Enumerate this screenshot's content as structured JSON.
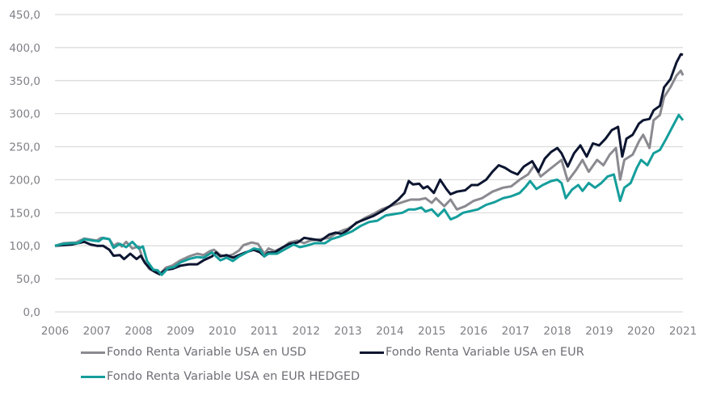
{
  "chart_data": {
    "type": "line",
    "title": "",
    "xlabel": "",
    "ylabel": "",
    "ylim": [
      0,
      450
    ],
    "xlim": [
      2006,
      2021
    ],
    "y_ticks": [
      "0,0",
      "50,0",
      "100,0",
      "150,0",
      "200,0",
      "250,0",
      "300,0",
      "350,0",
      "400,0",
      "450,0"
    ],
    "y_tick_values": [
      0,
      50,
      100,
      150,
      200,
      250,
      300,
      350,
      400,
      450
    ],
    "x_ticks": [
      "2006",
      "2007",
      "2008",
      "2009",
      "2010",
      "2011",
      "2012",
      "2013",
      "2014",
      "2015",
      "2016",
      "2017",
      "2018",
      "2019",
      "2020",
      "2021"
    ],
    "x_tick_values": [
      2006,
      2007,
      2008,
      2009,
      2010,
      2011,
      2012,
      2013,
      2014,
      2015,
      2016,
      2017,
      2018,
      2019,
      2020,
      2021
    ],
    "grid": true,
    "legend_position": "bottom",
    "series": [
      {
        "name": "Fondo Renta Variable USA en USD",
        "color": "#8a8a90",
        "points": [
          [
            2006.0,
            100
          ],
          [
            2006.2,
            104
          ],
          [
            2006.5,
            105
          ],
          [
            2006.7,
            111
          ],
          [
            2007.0,
            108
          ],
          [
            2007.1,
            112
          ],
          [
            2007.3,
            110
          ],
          [
            2007.4,
            100
          ],
          [
            2007.5,
            104
          ],
          [
            2007.6,
            99
          ],
          [
            2007.7,
            106
          ],
          [
            2007.85,
            96
          ],
          [
            2008.0,
            99
          ],
          [
            2008.1,
            80
          ],
          [
            2008.25,
            65
          ],
          [
            2008.4,
            62
          ],
          [
            2008.5,
            57
          ],
          [
            2008.65,
            67
          ],
          [
            2008.8,
            70
          ],
          [
            2009.0,
            78
          ],
          [
            2009.2,
            84
          ],
          [
            2009.4,
            88
          ],
          [
            2009.55,
            86
          ],
          [
            2009.7,
            92
          ],
          [
            2009.8,
            94
          ],
          [
            2009.95,
            86
          ],
          [
            2010.1,
            84
          ],
          [
            2010.25,
            87
          ],
          [
            2010.4,
            93
          ],
          [
            2010.5,
            101
          ],
          [
            2010.7,
            105
          ],
          [
            2010.85,
            103
          ],
          [
            2011.0,
            88
          ],
          [
            2011.1,
            96
          ],
          [
            2011.25,
            92
          ],
          [
            2011.45,
            98
          ],
          [
            2011.6,
            105
          ],
          [
            2011.8,
            108
          ],
          [
            2011.95,
            104
          ],
          [
            2012.1,
            108
          ],
          [
            2012.35,
            110
          ],
          [
            2012.55,
            112
          ],
          [
            2012.75,
            120
          ],
          [
            2012.9,
            124
          ],
          [
            2013.0,
            126
          ],
          [
            2013.2,
            134
          ],
          [
            2013.4,
            142
          ],
          [
            2013.6,
            148
          ],
          [
            2013.8,
            155
          ],
          [
            2014.0,
            160
          ],
          [
            2014.2,
            164
          ],
          [
            2014.4,
            168
          ],
          [
            2014.5,
            170
          ],
          [
            2014.7,
            170
          ],
          [
            2014.85,
            172
          ],
          [
            2015.0,
            165
          ],
          [
            2015.1,
            172
          ],
          [
            2015.3,
            160
          ],
          [
            2015.45,
            170
          ],
          [
            2015.6,
            155
          ],
          [
            2015.8,
            160
          ],
          [
            2016.0,
            168
          ],
          [
            2016.2,
            172
          ],
          [
            2016.45,
            182
          ],
          [
            2016.7,
            188
          ],
          [
            2016.9,
            190
          ],
          [
            2017.1,
            200
          ],
          [
            2017.3,
            208
          ],
          [
            2017.45,
            222
          ],
          [
            2017.6,
            205
          ],
          [
            2017.8,
            215
          ],
          [
            2018.0,
            225
          ],
          [
            2018.1,
            230
          ],
          [
            2018.25,
            198
          ],
          [
            2018.45,
            215
          ],
          [
            2018.6,
            230
          ],
          [
            2018.75,
            212
          ],
          [
            2018.95,
            230
          ],
          [
            2019.1,
            222
          ],
          [
            2019.25,
            238
          ],
          [
            2019.4,
            248
          ],
          [
            2019.5,
            200
          ],
          [
            2019.6,
            230
          ],
          [
            2019.8,
            238
          ],
          [
            2019.95,
            258
          ],
          [
            2020.05,
            268
          ],
          [
            2020.2,
            248
          ],
          [
            2020.3,
            290
          ],
          [
            2020.45,
            298
          ],
          [
            2020.55,
            325
          ],
          [
            2020.7,
            340
          ],
          [
            2020.85,
            358
          ],
          [
            2020.95,
            365
          ],
          [
            2021.0,
            358
          ]
        ]
      },
      {
        "name": "Fondo Renta Variable USA en EUR",
        "color": "#0c1530",
        "points": [
          [
            2006.0,
            100
          ],
          [
            2006.2,
            101
          ],
          [
            2006.4,
            102
          ],
          [
            2006.55,
            104
          ],
          [
            2006.7,
            106
          ],
          [
            2006.85,
            102
          ],
          [
            2007.0,
            100
          ],
          [
            2007.15,
            100
          ],
          [
            2007.3,
            94
          ],
          [
            2007.4,
            85
          ],
          [
            2007.55,
            86
          ],
          [
            2007.65,
            80
          ],
          [
            2007.8,
            88
          ],
          [
            2007.95,
            80
          ],
          [
            2008.05,
            85
          ],
          [
            2008.15,
            74
          ],
          [
            2008.3,
            64
          ],
          [
            2008.4,
            60
          ],
          [
            2008.5,
            57
          ],
          [
            2008.65,
            64
          ],
          [
            2008.8,
            65
          ],
          [
            2009.0,
            70
          ],
          [
            2009.2,
            72
          ],
          [
            2009.4,
            72
          ],
          [
            2009.55,
            78
          ],
          [
            2009.75,
            84
          ],
          [
            2009.85,
            90
          ],
          [
            2009.95,
            84
          ],
          [
            2010.1,
            86
          ],
          [
            2010.25,
            82
          ],
          [
            2010.4,
            86
          ],
          [
            2010.55,
            90
          ],
          [
            2010.75,
            94
          ],
          [
            2010.9,
            90
          ],
          [
            2011.0,
            84
          ],
          [
            2011.1,
            90
          ],
          [
            2011.25,
            90
          ],
          [
            2011.45,
            98
          ],
          [
            2011.6,
            103
          ],
          [
            2011.8,
            105
          ],
          [
            2011.95,
            112
          ],
          [
            2012.15,
            110
          ],
          [
            2012.35,
            108
          ],
          [
            2012.55,
            117
          ],
          [
            2012.7,
            120
          ],
          [
            2012.85,
            118
          ],
          [
            2013.0,
            124
          ],
          [
            2013.2,
            135
          ],
          [
            2013.4,
            140
          ],
          [
            2013.6,
            145
          ],
          [
            2013.8,
            152
          ],
          [
            2014.0,
            160
          ],
          [
            2014.2,
            170
          ],
          [
            2014.35,
            180
          ],
          [
            2014.45,
            198
          ],
          [
            2014.55,
            193
          ],
          [
            2014.7,
            194
          ],
          [
            2014.8,
            187
          ],
          [
            2014.9,
            190
          ],
          [
            2015.05,
            180
          ],
          [
            2015.2,
            200
          ],
          [
            2015.35,
            186
          ],
          [
            2015.45,
            178
          ],
          [
            2015.6,
            182
          ],
          [
            2015.8,
            184
          ],
          [
            2015.95,
            192
          ],
          [
            2016.1,
            192
          ],
          [
            2016.3,
            200
          ],
          [
            2016.45,
            212
          ],
          [
            2016.6,
            222
          ],
          [
            2016.75,
            218
          ],
          [
            2016.9,
            212
          ],
          [
            2017.05,
            208
          ],
          [
            2017.2,
            220
          ],
          [
            2017.4,
            228
          ],
          [
            2017.55,
            212
          ],
          [
            2017.7,
            232
          ],
          [
            2017.85,
            242
          ],
          [
            2018.0,
            248
          ],
          [
            2018.1,
            240
          ],
          [
            2018.25,
            220
          ],
          [
            2018.4,
            240
          ],
          [
            2018.55,
            252
          ],
          [
            2018.7,
            235
          ],
          [
            2018.85,
            255
          ],
          [
            2019.0,
            252
          ],
          [
            2019.15,
            262
          ],
          [
            2019.3,
            275
          ],
          [
            2019.45,
            280
          ],
          [
            2019.55,
            235
          ],
          [
            2019.65,
            262
          ],
          [
            2019.8,
            268
          ],
          [
            2019.95,
            285
          ],
          [
            2020.05,
            290
          ],
          [
            2020.2,
            292
          ],
          [
            2020.3,
            305
          ],
          [
            2020.45,
            312
          ],
          [
            2020.55,
            340
          ],
          [
            2020.7,
            352
          ],
          [
            2020.85,
            378
          ],
          [
            2020.95,
            390
          ],
          [
            2021.0,
            389
          ]
        ]
      },
      {
        "name": "Fondo Renta Variable USA en EUR HEDGED",
        "color": "#149e9b",
        "points": [
          [
            2006.0,
            100
          ],
          [
            2006.2,
            103
          ],
          [
            2006.4,
            104
          ],
          [
            2006.55,
            104
          ],
          [
            2006.7,
            110
          ],
          [
            2006.9,
            108
          ],
          [
            2007.05,
            107
          ],
          [
            2007.15,
            112
          ],
          [
            2007.3,
            110
          ],
          [
            2007.4,
            97
          ],
          [
            2007.55,
            103
          ],
          [
            2007.7,
            98
          ],
          [
            2007.85,
            106
          ],
          [
            2008.0,
            96
          ],
          [
            2008.1,
            99
          ],
          [
            2008.2,
            77
          ],
          [
            2008.35,
            64
          ],
          [
            2008.45,
            63
          ],
          [
            2008.55,
            56
          ],
          [
            2008.7,
            66
          ],
          [
            2008.85,
            68
          ],
          [
            2009.0,
            75
          ],
          [
            2009.2,
            80
          ],
          [
            2009.4,
            83
          ],
          [
            2009.55,
            82
          ],
          [
            2009.75,
            90
          ],
          [
            2009.85,
            84
          ],
          [
            2009.95,
            78
          ],
          [
            2010.1,
            82
          ],
          [
            2010.25,
            77
          ],
          [
            2010.4,
            84
          ],
          [
            2010.55,
            89
          ],
          [
            2010.75,
            96
          ],
          [
            2010.9,
            94
          ],
          [
            2011.0,
            84
          ],
          [
            2011.1,
            88
          ],
          [
            2011.3,
            88
          ],
          [
            2011.5,
            95
          ],
          [
            2011.7,
            102
          ],
          [
            2011.85,
            98
          ],
          [
            2012.0,
            100
          ],
          [
            2012.2,
            104
          ],
          [
            2012.45,
            104
          ],
          [
            2012.6,
            110
          ],
          [
            2012.8,
            114
          ],
          [
            2012.95,
            118
          ],
          [
            2013.1,
            122
          ],
          [
            2013.3,
            130
          ],
          [
            2013.5,
            136
          ],
          [
            2013.7,
            138
          ],
          [
            2013.9,
            146
          ],
          [
            2014.1,
            148
          ],
          [
            2014.3,
            150
          ],
          [
            2014.45,
            155
          ],
          [
            2014.6,
            155
          ],
          [
            2014.75,
            158
          ],
          [
            2014.85,
            152
          ],
          [
            2015.0,
            155
          ],
          [
            2015.15,
            145
          ],
          [
            2015.3,
            155
          ],
          [
            2015.45,
            140
          ],
          [
            2015.6,
            144
          ],
          [
            2015.75,
            150
          ],
          [
            2015.95,
            153
          ],
          [
            2016.1,
            155
          ],
          [
            2016.3,
            162
          ],
          [
            2016.5,
            166
          ],
          [
            2016.7,
            172
          ],
          [
            2016.9,
            175
          ],
          [
            2017.1,
            180
          ],
          [
            2017.25,
            190
          ],
          [
            2017.35,
            198
          ],
          [
            2017.5,
            186
          ],
          [
            2017.65,
            192
          ],
          [
            2017.85,
            198
          ],
          [
            2018.0,
            200
          ],
          [
            2018.1,
            195
          ],
          [
            2018.2,
            172
          ],
          [
            2018.35,
            185
          ],
          [
            2018.5,
            192
          ],
          [
            2018.6,
            183
          ],
          [
            2018.75,
            195
          ],
          [
            2018.9,
            188
          ],
          [
            2019.05,
            195
          ],
          [
            2019.2,
            205
          ],
          [
            2019.35,
            208
          ],
          [
            2019.5,
            168
          ],
          [
            2019.6,
            188
          ],
          [
            2019.75,
            195
          ],
          [
            2019.9,
            218
          ],
          [
            2020.0,
            230
          ],
          [
            2020.15,
            222
          ],
          [
            2020.3,
            240
          ],
          [
            2020.45,
            245
          ],
          [
            2020.6,
            262
          ],
          [
            2020.75,
            280
          ],
          [
            2020.9,
            298
          ],
          [
            2021.0,
            290
          ]
        ]
      }
    ]
  },
  "legend": {
    "items": [
      {
        "label": "Fondo Renta Variable USA en USD",
        "color": "#8a8a90"
      },
      {
        "label": "Fondo Renta Variable USA en EUR",
        "color": "#0c1530"
      },
      {
        "label": "Fondo Renta Variable USA en EUR HEDGED",
        "color": "#149e9b"
      }
    ]
  }
}
